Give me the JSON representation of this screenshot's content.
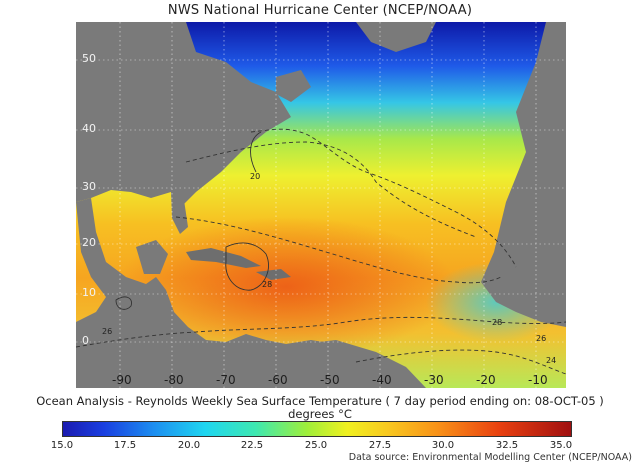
{
  "header": {
    "title": "NWS National Hurricane Center (NCEP/NOAA)"
  },
  "map": {
    "lat_labels": [
      "50",
      "40",
      "30",
      "20",
      "10",
      "0"
    ],
    "lon_labels": [
      "-90",
      "-80",
      "-70",
      "-60",
      "-50",
      "-40",
      "-30",
      "-20",
      "-10"
    ],
    "contour_labels": [
      "20",
      "28",
      "26",
      "28",
      "26",
      "24"
    ],
    "colors": {
      "land": "#7a7a7a",
      "cold": "#1530c8",
      "warm": "#f58a18",
      "hot": "#e8561a"
    }
  },
  "caption": {
    "line1": "Ocean Analysis - Reynolds Weekly Sea Surface Temperature ( 7 day period ending on: 08-OCT-05 )",
    "line2": "degrees °C"
  },
  "colorbar": {
    "ticks": [
      "15.0",
      "17.5",
      "20.0",
      "22.5",
      "25.0",
      "27.5",
      "30.0",
      "32.5",
      "35.0"
    ]
  },
  "footer": {
    "source": "Data source: Environmental Modelling Center (NCEP/NOAA)"
  }
}
